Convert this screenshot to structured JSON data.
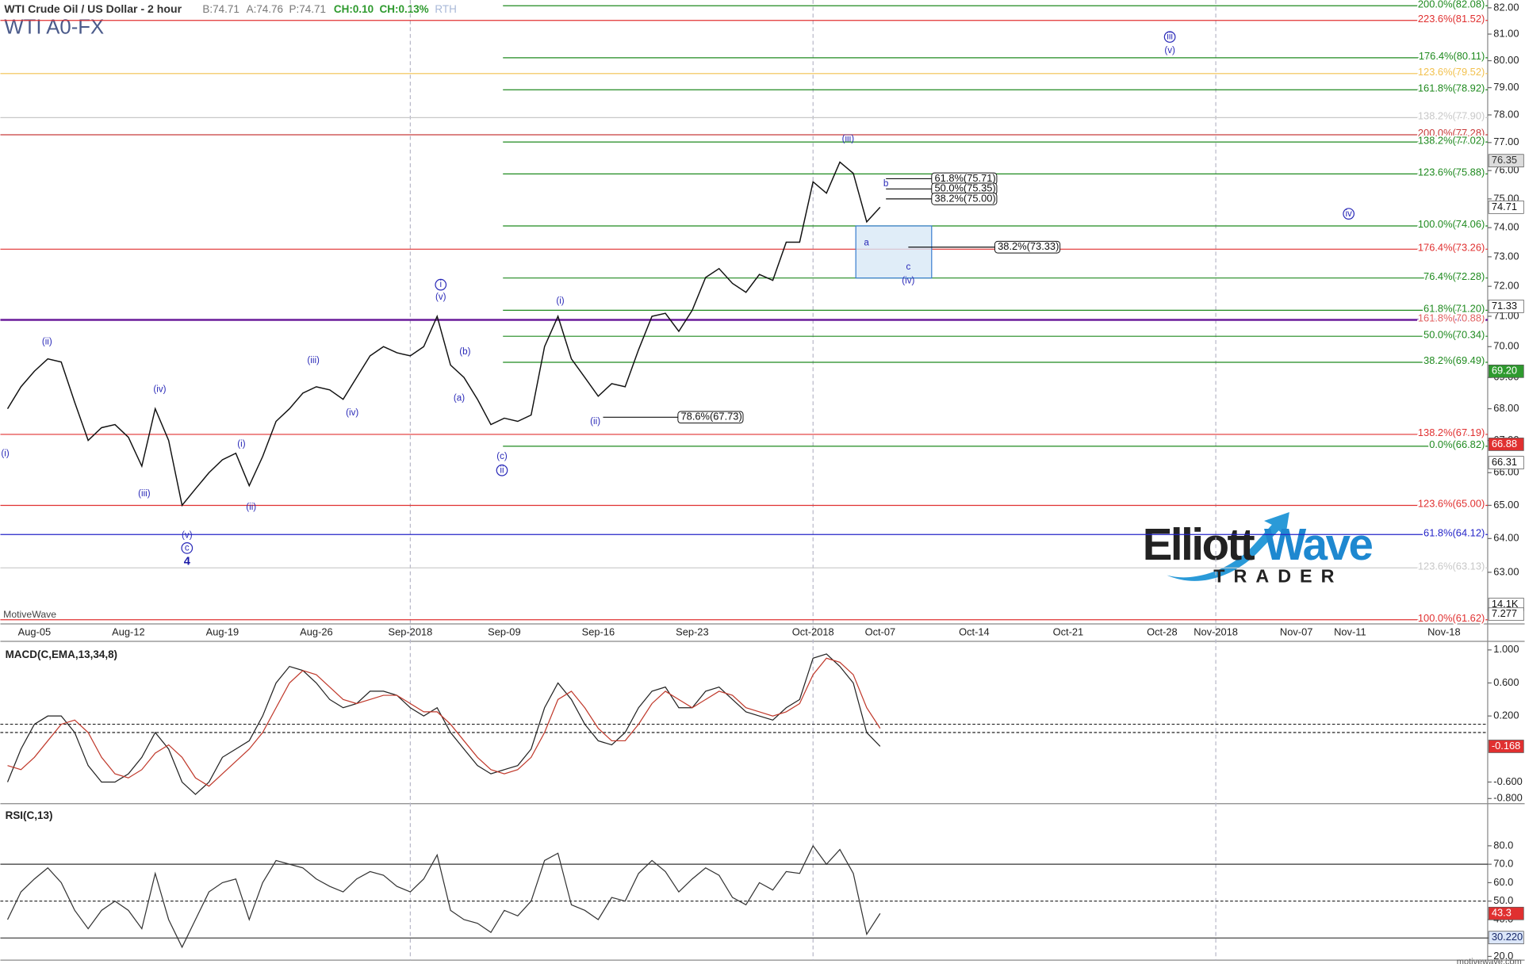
{
  "header": {
    "title": "WTI Crude Oil / US Dollar - 2 hour",
    "bid": "B:74.71",
    "ask": "A:74.76",
    "price": "P:74.71",
    "change": "CH:0.10",
    "change_pct": "CH:0.13%",
    "session": "RTH",
    "symbol": "WTI A0-FX"
  },
  "logo": {
    "word1": "Elliott",
    "word2": "Wave",
    "tagline": "TRADER"
  },
  "brand": "MotiveWave",
  "footer": "motivewave.com",
  "chart_data": [
    {
      "type": "line",
      "log_scale": true,
      "categories": [
        null,
        null,
        "Aug-05",
        null,
        null,
        null,
        null,
        null,
        null,
        "Aug-12",
        null,
        null,
        null,
        null,
        null,
        null,
        "Aug-19",
        null,
        null,
        null,
        null,
        null,
        null,
        "Aug-26",
        null,
        null,
        null,
        null,
        null,
        null,
        "Sep-2018",
        null,
        null,
        null,
        null,
        null,
        null,
        "Sep-09",
        null,
        null,
        null,
        null,
        null,
        null,
        "Sep-16",
        null,
        null,
        null,
        null,
        null,
        null,
        "Sep-23",
        null,
        null,
        null,
        null,
        null,
        null,
        null,
        null,
        "Oct-2018",
        null,
        null,
        null,
        null,
        "Oct-07",
        null,
        null,
        null,
        null,
        null,
        null,
        "Oct-14",
        null,
        null,
        null,
        null,
        null,
        null,
        "Oct-21",
        null,
        null,
        null,
        null,
        null,
        null,
        "Oct-28",
        null,
        null,
        null,
        "Nov-2018",
        null,
        null,
        null,
        null,
        null,
        "Nov-07",
        null,
        null,
        null,
        "Nov-11",
        null,
        null,
        null,
        null,
        null,
        null,
        "Nov-18"
      ],
      "color": "#111111",
      "values": [
        68.0,
        68.7,
        69.2,
        69.6,
        69.5,
        68.2,
        67.0,
        67.4,
        67.5,
        67.1,
        66.2,
        68.0,
        67.0,
        65.0,
        65.5,
        66.0,
        66.4,
        66.6,
        65.6,
        66.5,
        67.6,
        68.0,
        68.5,
        68.7,
        68.6,
        68.3,
        69.0,
        69.7,
        70.0,
        69.8,
        69.7,
        70.0,
        71.0,
        69.4,
        69.0,
        68.3,
        67.5,
        67.7,
        67.6,
        67.8,
        70.0,
        71.0,
        69.6,
        69.0,
        68.4,
        68.8,
        68.7,
        69.9,
        71.0,
        71.1,
        70.5,
        71.2,
        72.3,
        72.6,
        72.1,
        71.8,
        72.4,
        72.2,
        73.5,
        73.5,
        75.6,
        75.2,
        76.3,
        75.9,
        74.2,
        74.71,
        null,
        null,
        null,
        null,
        null,
        null,
        null,
        null,
        null,
        null,
        null,
        null,
        null,
        null,
        null,
        null,
        null,
        null,
        null,
        null,
        null,
        null,
        null,
        null,
        null,
        null,
        null,
        null,
        null,
        null,
        null,
        null,
        null,
        null,
        null,
        null,
        null,
        null,
        null,
        null,
        null,
        null
      ],
      "ylim": [
        61.5,
        82.3
      ],
      "yticks": [
        {
          "value": 82,
          "label": "82.00"
        },
        {
          "value": 81,
          "label": "81.00"
        },
        {
          "value": 80,
          "label": "80.00"
        },
        {
          "value": 79,
          "label": "79.00"
        },
        {
          "value": 78,
          "label": "78.00"
        },
        {
          "value": 77,
          "label": "77.00"
        },
        {
          "value": 76,
          "label": "76.00"
        },
        {
          "value": 75,
          "label": "75.00"
        },
        {
          "value": 74,
          "label": "74.00"
        },
        {
          "value": 73,
          "label": "73.00"
        },
        {
          "value": 72,
          "label": "72.00"
        },
        {
          "value": 71,
          "label": "71.00"
        },
        {
          "value": 70,
          "label": "70.00"
        },
        {
          "value": 69,
          "label": "69.00"
        },
        {
          "value": 68,
          "label": "68.00"
        },
        {
          "value": 67,
          "label": "67.00"
        },
        {
          "value": 66,
          "label": "66.00"
        },
        {
          "value": 65,
          "label": "65.00"
        },
        {
          "value": 64,
          "label": "64.00"
        },
        {
          "value": 63,
          "label": "63.00"
        }
      ],
      "fib_levels": [
        {
          "value": 81.52,
          "label": "223.6%(81.52)",
          "color": "#e03030"
        },
        {
          "value": 79.52,
          "label": "123.6%(79.52)",
          "color": "#f2c14e"
        },
        {
          "value": 77.9,
          "label": "138.2%(77.90)",
          "color": "#c8c8c8"
        },
        {
          "value": 77.28,
          "label": "200.0%(77.28)",
          "color": "#c83a3a"
        },
        {
          "value": 73.26,
          "label": "176.4%(73.26)",
          "color": "#e03030"
        },
        {
          "value": 70.88,
          "label": "161.8%(70.88)",
          "color": "#6a1b9a"
        },
        {
          "value": 67.19,
          "label": "138.2%(67.19)",
          "color": "#e03030"
        },
        {
          "value": 65.0,
          "label": "123.6%(65.00)",
          "color": "#e03030"
        },
        {
          "value": 64.12,
          "label": "61.8%(64.12)",
          "color": "#2424c8"
        },
        {
          "value": 63.13,
          "label": "123.6%(63.13)",
          "color": "#c8c8c8"
        },
        {
          "value": 61.62,
          "label": "100.0%(61.62)",
          "color": "#e03030"
        }
      ],
      "projection_levels": [
        {
          "value": 82.08,
          "label": "200.0%(82.08)",
          "color": "#1f8a1f"
        },
        {
          "value": 80.11,
          "label": "176.4%(80.11)",
          "color": "#1f8a1f"
        },
        {
          "value": 78.92,
          "label": "161.8%(78.92)",
          "color": "#1f8a1f"
        },
        {
          "value": 77.02,
          "label": "138.2%(77.02)",
          "color": "#1f8a1f"
        },
        {
          "value": 75.88,
          "label": "123.6%(75.88)",
          "color": "#1f8a1f"
        },
        {
          "value": 74.06,
          "label": "100.0%(74.06)",
          "color": "#1f8a1f"
        },
        {
          "value": 72.28,
          "label": "76.4%(72.28)",
          "color": "#1f8a1f"
        },
        {
          "value": 71.2,
          "label": "61.8%(71.20)",
          "color": "#1f8a1f"
        },
        {
          "value": 70.34,
          "label": "50.0%(70.34)",
          "color": "#1f8a1f"
        },
        {
          "value": 69.49,
          "label": "38.2%(69.49)",
          "color": "#1f8a1f"
        },
        {
          "value": 66.82,
          "label": "0.0%(66.82)",
          "color": "#1f8a1f"
        }
      ],
      "retracements": [
        {
          "value": 75.71,
          "label": "61.8%(75.71)"
        },
        {
          "value": 75.35,
          "label": "50.0%(75.35)"
        },
        {
          "value": 75.0,
          "label": "38.2%(75.00)"
        },
        {
          "value": 73.33,
          "label": "38.2%(73.33)"
        },
        {
          "value": 67.73,
          "label": "78.6%(67.73)"
        }
      ],
      "target_zone": [
        72.28,
        74.06
      ],
      "wave_labels": [
        "(i)",
        "(ii)",
        "(iii)",
        "(iv)",
        "(v)",
        "c",
        "4",
        "(i)",
        "(ii)",
        "(iii)",
        "(iv)",
        "i",
        "(v)",
        "(b)",
        "(a)",
        "(c)",
        "ii",
        "(i)",
        "(ii)",
        "(iii)",
        "b",
        "a",
        "c",
        "(iv)",
        "iii",
        "(v)",
        "iv"
      ],
      "price_tags": [
        {
          "value": 76.35,
          "label": "76.35",
          "color": "#dcdcdc",
          "text_color": "#333333"
        },
        {
          "value": 74.71,
          "label": "74.71",
          "color": "#ffffff",
          "text_color": "#111111"
        },
        {
          "value": 71.33,
          "label": "71.33",
          "color": "#ffffff",
          "text_color": "#111111"
        },
        {
          "value": 69.2,
          "label": "69.20",
          "color": "#2e9a2e",
          "text_color": "#ffffff"
        },
        {
          "value": 66.88,
          "label": "66.88",
          "color": "#e03030",
          "text_color": "#ffffff"
        },
        {
          "value": 66.31,
          "label": "66.31",
          "color": "#ffffff",
          "text_color": "#111111"
        }
      ],
      "volume_tags": [
        "14.1K",
        "7.277"
      ]
    },
    {
      "type": "macd",
      "title": "MACD(C,EMA,13,34,8)",
      "series": [
        {
          "color": "#222222",
          "values": [
            -0.6,
            -0.2,
            0.1,
            0.2,
            0.2,
            0.0,
            -0.4,
            -0.6,
            -0.6,
            -0.5,
            -0.3,
            0.0,
            -0.2,
            -0.6,
            -0.75,
            -0.6,
            -0.3,
            -0.2,
            -0.1,
            0.2,
            0.6,
            0.8,
            0.75,
            0.6,
            0.4,
            0.3,
            0.35,
            0.5,
            0.5,
            0.45,
            0.3,
            0.2,
            0.3,
            0.0,
            -0.2,
            -0.4,
            -0.5,
            -0.45,
            -0.4,
            -0.2,
            0.3,
            0.6,
            0.4,
            0.1,
            -0.1,
            -0.15,
            0.0,
            0.3,
            0.5,
            0.55,
            0.3,
            0.3,
            0.5,
            0.55,
            0.4,
            0.25,
            0.2,
            0.15,
            0.3,
            0.4,
            0.9,
            0.95,
            0.8,
            0.6,
            0.0,
            -0.168,
            null,
            null,
            null,
            null,
            null,
            null,
            null,
            null,
            null,
            null,
            null,
            null,
            null,
            null,
            null,
            null,
            null,
            null,
            null,
            null,
            null,
            null,
            null,
            null,
            null,
            null,
            null,
            null,
            null,
            null,
            null,
            null,
            null,
            null,
            null,
            null,
            null,
            null,
            null,
            null,
            null,
            null
          ]
        },
        {
          "color": "#c0392b",
          "values": [
            -0.4,
            -0.45,
            -0.3,
            -0.1,
            0.1,
            0.15,
            0.0,
            -0.3,
            -0.5,
            -0.55,
            -0.45,
            -0.25,
            -0.15,
            -0.3,
            -0.55,
            -0.65,
            -0.5,
            -0.35,
            -0.2,
            0.0,
            0.3,
            0.6,
            0.75,
            0.7,
            0.55,
            0.4,
            0.35,
            0.4,
            0.45,
            0.45,
            0.35,
            0.25,
            0.25,
            0.1,
            -0.1,
            -0.3,
            -0.45,
            -0.5,
            -0.45,
            -0.3,
            0.0,
            0.4,
            0.5,
            0.3,
            0.05,
            -0.1,
            -0.1,
            0.1,
            0.35,
            0.5,
            0.4,
            0.3,
            0.4,
            0.5,
            0.45,
            0.3,
            0.25,
            0.2,
            0.25,
            0.35,
            0.7,
            0.9,
            0.85,
            0.7,
            0.3,
            0.05,
            null,
            null,
            null,
            null,
            null,
            null,
            null,
            null,
            null,
            null,
            null,
            null,
            null,
            null,
            null,
            null,
            null,
            null,
            null,
            null,
            null,
            null,
            null,
            null,
            null,
            null,
            null,
            null,
            null,
            null,
            null,
            null,
            null,
            null,
            null,
            null,
            null,
            null,
            null,
            null,
            null,
            null
          ]
        }
      ],
      "ylim": [
        -0.85,
        1.08
      ],
      "yticks": [
        {
          "value": 1,
          "label": "1.000"
        },
        {
          "value": 0.6,
          "label": "0.600"
        },
        {
          "value": 0.2,
          "label": "0.200"
        },
        {
          "value": -0.6,
          "label": "-0.600"
        },
        {
          "value": -0.8,
          "label": "-0.800"
        }
      ],
      "ref_lines": [
        0.1,
        0
      ]
    },
    {
      "type": "rsi",
      "title": "RSI(C,13)",
      "color": "#333333",
      "values": [
        40,
        55,
        62,
        68,
        60,
        45,
        35,
        45,
        50,
        45,
        35,
        65,
        40,
        25,
        40,
        55,
        60,
        62,
        40,
        60,
        72,
        70,
        68,
        62,
        58,
        55,
        62,
        66,
        64,
        58,
        55,
        62,
        75,
        45,
        40,
        38,
        33,
        45,
        42,
        50,
        72,
        76,
        48,
        45,
        40,
        52,
        50,
        65,
        72,
        66,
        55,
        62,
        68,
        64,
        52,
        48,
        60,
        56,
        66,
        65,
        80,
        70,
        78,
        65,
        32,
        43.3,
        null,
        null,
        null,
        null,
        null,
        null,
        null,
        null,
        null,
        null,
        null,
        null,
        null,
        null,
        null,
        null,
        null,
        null,
        null,
        null,
        null,
        null,
        null,
        null,
        null,
        null,
        null,
        null,
        null,
        null,
        null,
        null,
        null,
        null,
        null,
        null,
        null,
        null,
        null,
        null,
        null,
        null
      ],
      "ylim": [
        18,
        101.8
      ],
      "yticks": [
        {
          "value": 80,
          "label": "80.0"
        },
        {
          "value": 70,
          "label": "70.0"
        },
        {
          "value": 60,
          "label": "60.0"
        },
        {
          "value": 50,
          "label": "50.0"
        },
        {
          "value": 40,
          "label": "40.0"
        },
        {
          "value": 30,
          "label": "30.0"
        },
        {
          "value": 20,
          "label": "20.0"
        }
      ],
      "ref_lines": [
        70,
        50,
        30
      ],
      "tags": [
        {
          "value": 30.22,
          "label": "30.220"
        }
      ]
    }
  ]
}
